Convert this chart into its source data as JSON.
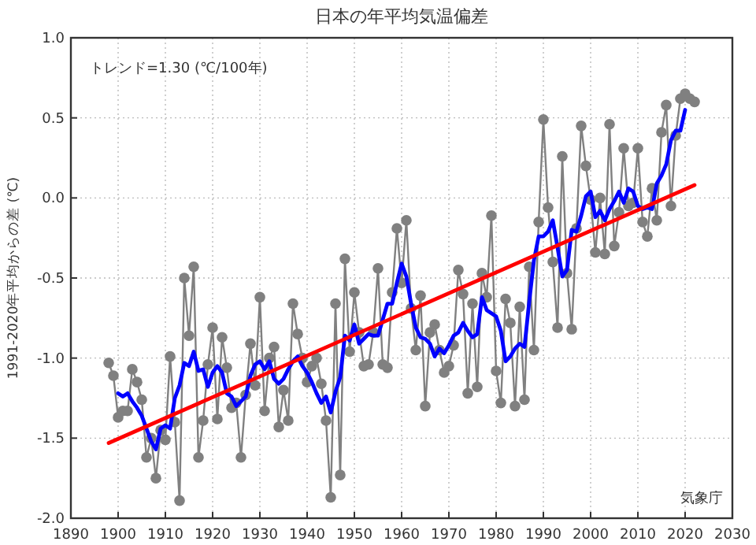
{
  "chart_data": {
    "type": "line",
    "title": "日本の年平均気温偏差",
    "ylabel": "1991-2020年平均からの差 (℃)",
    "annotations": [
      "トレンド=1.30 (℃/100年)",
      "気象庁"
    ],
    "xlim": [
      1890,
      2030
    ],
    "xticks": [
      1890,
      1900,
      1910,
      1920,
      1930,
      1940,
      1950,
      1960,
      1970,
      1980,
      1990,
      2000,
      2010,
      2020,
      2030
    ],
    "ylim": [
      -2.0,
      1.0
    ],
    "yticks": [
      {
        "value": -2.0,
        "label": "-2.0"
      },
      {
        "value": -1.5,
        "label": "-1.5"
      },
      {
        "value": -1.0,
        "label": "-1.0"
      },
      {
        "value": -0.5,
        "label": "-0.5"
      },
      {
        "value": 0.0,
        "label": "0.0"
      },
      {
        "value": 0.5,
        "label": "0.5"
      },
      {
        "value": 1.0,
        "label": "1.0"
      }
    ],
    "grid": true,
    "x": [
      1898,
      1899,
      1900,
      1901,
      1902,
      1903,
      1904,
      1905,
      1906,
      1907,
      1908,
      1909,
      1910,
      1911,
      1912,
      1913,
      1914,
      1915,
      1916,
      1917,
      1918,
      1919,
      1920,
      1921,
      1922,
      1923,
      1924,
      1925,
      1926,
      1927,
      1928,
      1929,
      1930,
      1931,
      1932,
      1933,
      1934,
      1935,
      1936,
      1937,
      1938,
      1939,
      1940,
      1941,
      1942,
      1943,
      1944,
      1945,
      1946,
      1947,
      1948,
      1949,
      1950,
      1951,
      1952,
      1953,
      1954,
      1955,
      1956,
      1957,
      1958,
      1959,
      1960,
      1961,
      1962,
      1963,
      1964,
      1965,
      1966,
      1967,
      1968,
      1969,
      1970,
      1971,
      1972,
      1973,
      1974,
      1975,
      1976,
      1977,
      1978,
      1979,
      1980,
      1981,
      1982,
      1983,
      1984,
      1985,
      1986,
      1987,
      1988,
      1989,
      1990,
      1991,
      1992,
      1993,
      1994,
      1995,
      1996,
      1997,
      1998,
      1999,
      2000,
      2001,
      2002,
      2003,
      2004,
      2005,
      2006,
      2007,
      2008,
      2009,
      2010,
      2011,
      2012,
      2013,
      2014,
      2015,
      2016,
      2017,
      2018,
      2019,
      2020,
      2021,
      2022
    ],
    "series": [
      {
        "color": "#808080",
        "marker": "circle",
        "values": [
          -1.03,
          -1.11,
          -1.37,
          -1.33,
          -1.33,
          -1.07,
          -1.15,
          -1.26,
          -1.62,
          -1.5,
          -1.75,
          -1.45,
          -1.51,
          -0.99,
          -1.4,
          -1.89,
          -0.5,
          -0.86,
          -0.43,
          -1.62,
          -1.39,
          -1.04,
          -0.81,
          -1.38,
          -0.87,
          -1.06,
          -1.31,
          -1.28,
          -1.62,
          -1.23,
          -0.91,
          -1.17,
          -0.62,
          -1.33,
          -1.0,
          -0.93,
          -1.43,
          -1.2,
          -1.39,
          -0.66,
          -0.85,
          -1.0,
          -1.15,
          -1.05,
          -1.0,
          -1.16,
          -1.39,
          -1.87,
          -0.66,
          -1.73,
          -0.38,
          -0.96,
          -0.59,
          -0.84,
          -1.05,
          -1.04,
          -0.84,
          -0.44,
          -1.04,
          -1.06,
          -0.59,
          -0.19,
          -0.53,
          -0.14,
          -0.69,
          -0.95,
          -0.61,
          -1.3,
          -0.84,
          -0.79,
          -0.95,
          -1.09,
          -1.05,
          -0.92,
          -0.45,
          -0.6,
          -1.22,
          -0.66,
          -1.18,
          -0.47,
          -0.62,
          -0.11,
          -1.08,
          -1.28,
          -0.63,
          -0.78,
          -1.3,
          -0.68,
          -1.26,
          -0.43,
          -0.95,
          -0.15,
          0.49,
          -0.06,
          -0.4,
          -0.81,
          0.26,
          -0.47,
          -0.82,
          -0.19,
          0.45,
          0.2,
          -0.01,
          -0.34,
          0.0,
          -0.35,
          0.46,
          -0.3,
          -0.09,
          0.31,
          -0.05,
          -0.03,
          0.31,
          -0.15,
          -0.24,
          0.06,
          -0.14,
          0.41,
          0.58,
          -0.05,
          0.39,
          0.62,
          0.65,
          0.62,
          0.6
        ]
      },
      {
        "color": "#0000ff",
        "x": [
          1900,
          1901,
          1902,
          1903,
          1904,
          1905,
          1906,
          1907,
          1908,
          1909,
          1910,
          1911,
          1912,
          1913,
          1914,
          1915,
          1916,
          1917,
          1918,
          1919,
          1920,
          1921,
          1922,
          1923,
          1924,
          1925,
          1926,
          1927,
          1928,
          1929,
          1930,
          1931,
          1932,
          1933,
          1934,
          1935,
          1936,
          1937,
          1938,
          1939,
          1940,
          1941,
          1942,
          1943,
          1944,
          1945,
          1946,
          1947,
          1948,
          1949,
          1950,
          1951,
          1952,
          1953,
          1954,
          1955,
          1956,
          1957,
          1958,
          1959,
          1960,
          1961,
          1962,
          1963,
          1964,
          1965,
          1966,
          1967,
          1968,
          1969,
          1970,
          1971,
          1972,
          1973,
          1974,
          1975,
          1976,
          1977,
          1978,
          1979,
          1980,
          1981,
          1982,
          1983,
          1984,
          1985,
          1986,
          1987,
          1988,
          1989,
          1990,
          1991,
          1992,
          1993,
          1994,
          1995,
          1996,
          1997,
          1998,
          1999,
          2000,
          2001,
          2002,
          2003,
          2004,
          2005,
          2006,
          2007,
          2008,
          2009,
          2010,
          2011,
          2012,
          2013,
          2014,
          2015,
          2016,
          2017,
          2018,
          2019,
          2020
        ],
        "values": [
          -1.22,
          -1.24,
          -1.22,
          -1.27,
          -1.31,
          -1.36,
          -1.44,
          -1.52,
          -1.57,
          -1.44,
          -1.42,
          -1.44,
          -1.25,
          -1.17,
          -1.03,
          -1.05,
          -0.96,
          -1.08,
          -1.07,
          -1.18,
          -1.09,
          -1.05,
          -1.09,
          -1.22,
          -1.24,
          -1.3,
          -1.27,
          -1.24,
          -1.11,
          -1.04,
          -1.02,
          -1.07,
          -1.02,
          -1.13,
          -1.16,
          -1.13,
          -1.07,
          -1.02,
          -0.99,
          -1.05,
          -1.09,
          -1.15,
          -1.22,
          -1.28,
          -1.24,
          -1.34,
          -1.21,
          -1.12,
          -0.86,
          -0.89,
          -0.79,
          -0.91,
          -0.88,
          -0.85,
          -0.86,
          -0.86,
          -0.76,
          -0.66,
          -0.66,
          -0.53,
          -0.41,
          -0.49,
          -0.66,
          -0.81,
          -0.87,
          -0.88,
          -0.91,
          -0.99,
          -0.94,
          -0.97,
          -0.92,
          -0.86,
          -0.84,
          -0.78,
          -0.83,
          -0.87,
          -0.85,
          -0.62,
          -0.7,
          -0.72,
          -0.74,
          -0.83,
          -1.02,
          -0.99,
          -0.94,
          -0.91,
          -0.93,
          -0.65,
          -0.39,
          -0.24,
          -0.24,
          -0.21,
          -0.14,
          -0.31,
          -0.49,
          -0.45,
          -0.2,
          -0.21,
          -0.11,
          0.01,
          0.04,
          -0.12,
          -0.08,
          -0.14,
          -0.07,
          -0.02,
          0.04,
          -0.03,
          0.06,
          0.04,
          -0.05,
          -0.07,
          -0.06,
          -0.07,
          0.09,
          0.14,
          0.21,
          0.36,
          0.42,
          0.42,
          0.55
        ]
      },
      {
        "color": "#ff0000",
        "x": [
          1898,
          2022
        ],
        "values": [
          -1.53,
          0.08
        ]
      }
    ]
  }
}
